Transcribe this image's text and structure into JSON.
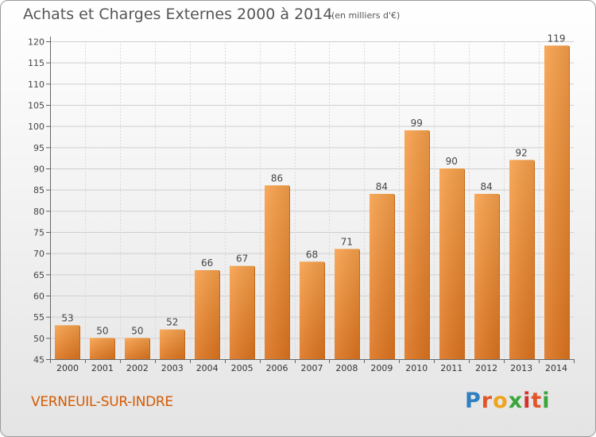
{
  "header": {
    "title": "Achats et Charges Externes 2000 à 2014",
    "unit": "(en milliers d'€)"
  },
  "footer": {
    "town": "VERNEUIL-SUR-INDRE",
    "logo_letters": [
      "P",
      "r",
      "o",
      "x",
      "i",
      "t",
      "i"
    ],
    "logo_colors": [
      "#2f7fc1",
      "#e2552a",
      "#f0a31c",
      "#3aa63a",
      "#d4312b",
      "#e2552a",
      "#3aa63a"
    ]
  },
  "chart_data": {
    "type": "bar",
    "categories": [
      "2000",
      "2001",
      "2002",
      "2003",
      "2004",
      "2005",
      "2006",
      "2007",
      "2008",
      "2009",
      "2010",
      "2011",
      "2012",
      "2013",
      "2014"
    ],
    "values": [
      53,
      50,
      50,
      52,
      66,
      67,
      86,
      68,
      71,
      84,
      99,
      90,
      84,
      92,
      119
    ],
    "ylim": [
      45,
      120
    ],
    "yticks": [
      45,
      50,
      55,
      60,
      65,
      70,
      75,
      80,
      85,
      90,
      95,
      100,
      105,
      110,
      115,
      120
    ],
    "grid": true,
    "bar_color": "#f0932f"
  }
}
